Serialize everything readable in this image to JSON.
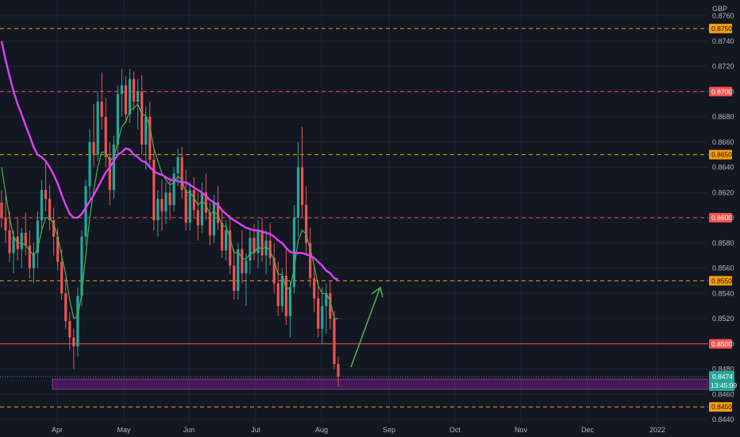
{
  "chart_data": {
    "type": "candlestick",
    "currency": "GBP",
    "grid": true,
    "y_axis": {
      "min": 0.8436,
      "max": 0.8772,
      "ticks": [
        "0.8760",
        "0.8740",
        "0.8720",
        "0.8700",
        "0.8680",
        "0.8660",
        "0.8640",
        "0.8620",
        "0.8600",
        "0.8580",
        "0.8560",
        "0.8540",
        "0.8520",
        "0.8500",
        "0.8480",
        "0.8460",
        "0.8440"
      ]
    },
    "x_axis": {
      "labels": [
        "Apr",
        "May",
        "Jun",
        "Jul",
        "Aug",
        "Sep",
        "Oct",
        "Nov",
        "Dec",
        "2022"
      ]
    },
    "levels": [
      {
        "value": 0.875,
        "label": "0.8750",
        "color": "#f59d0b",
        "style": "dashed"
      },
      {
        "value": 0.87,
        "label": "0.8700",
        "color": "#f05350",
        "style": "dashed"
      },
      {
        "value": 0.865,
        "label": "0.8650",
        "color": "#f59d0b",
        "style": "dashed"
      },
      {
        "value": 0.86,
        "label": "0.8600",
        "color": "#f05350",
        "style": "dashed"
      },
      {
        "value": 0.855,
        "label": "0.8550",
        "color": "#f59d0b",
        "style": "dashed"
      },
      {
        "value": 0.85,
        "label": "0.8500",
        "color": "#f05350",
        "style": "solid"
      },
      {
        "value": 0.845,
        "label": "0.8450",
        "color": "#f59d0b",
        "style": "dashed"
      }
    ],
    "support_zone": {
      "low": 0.8464,
      "high": 0.8472,
      "color": "#9c27b0"
    },
    "current_price": {
      "value": "0.8474",
      "countdown": "13:45:09",
      "color": "#26a69a"
    },
    "colors": {
      "up": "#26a69a",
      "down": "#ef5350",
      "ema_fast": "#4caf50",
      "ema_slow": "#e040fb",
      "arrow": "#4caf50"
    },
    "candles_ohlc": [
      [
        0.8612,
        0.8622,
        0.8592,
        0.86
      ],
      [
        0.86,
        0.8618,
        0.858,
        0.859
      ],
      [
        0.859,
        0.8605,
        0.8565,
        0.8572
      ],
      [
        0.8572,
        0.859,
        0.8556,
        0.8585
      ],
      [
        0.8585,
        0.86,
        0.8566,
        0.8575
      ],
      [
        0.8575,
        0.8592,
        0.856,
        0.8588
      ],
      [
        0.8588,
        0.8604,
        0.857,
        0.8578
      ],
      [
        0.8578,
        0.859,
        0.8552,
        0.856
      ],
      [
        0.856,
        0.858,
        0.8548,
        0.8572
      ],
      [
        0.8572,
        0.8605,
        0.856,
        0.8598
      ],
      [
        0.8598,
        0.863,
        0.8588,
        0.8622
      ],
      [
        0.8622,
        0.8645,
        0.8605,
        0.8615
      ],
      [
        0.8615,
        0.8626,
        0.859,
        0.8598
      ],
      [
        0.8598,
        0.8608,
        0.857,
        0.8585
      ],
      [
        0.8585,
        0.8592,
        0.8558,
        0.8565
      ],
      [
        0.8565,
        0.8575,
        0.8535,
        0.854
      ],
      [
        0.854,
        0.8552,
        0.8512,
        0.8518
      ],
      [
        0.8518,
        0.8525,
        0.8495,
        0.8505
      ],
      [
        0.8505,
        0.8512,
        0.848,
        0.8498
      ],
      [
        0.8498,
        0.8545,
        0.849,
        0.8538
      ],
      [
        0.8538,
        0.859,
        0.853,
        0.8585
      ],
      [
        0.8585,
        0.863,
        0.8578,
        0.8625
      ],
      [
        0.8625,
        0.867,
        0.8615,
        0.866
      ],
      [
        0.866,
        0.869,
        0.864,
        0.865
      ],
      [
        0.865,
        0.87,
        0.8645,
        0.8692
      ],
      [
        0.8692,
        0.8715,
        0.867,
        0.868
      ],
      [
        0.868,
        0.8695,
        0.864,
        0.8648
      ],
      [
        0.8648,
        0.866,
        0.861,
        0.8622
      ],
      [
        0.8622,
        0.8665,
        0.8615,
        0.8658
      ],
      [
        0.8658,
        0.8705,
        0.865,
        0.8698
      ],
      [
        0.8698,
        0.8718,
        0.868,
        0.8705
      ],
      [
        0.8705,
        0.8712,
        0.8675,
        0.8682
      ],
      [
        0.8682,
        0.8718,
        0.8675,
        0.871
      ],
      [
        0.871,
        0.8716,
        0.8685,
        0.8692
      ],
      [
        0.8692,
        0.871,
        0.867,
        0.87
      ],
      [
        0.87,
        0.8713,
        0.865,
        0.8658
      ],
      [
        0.8658,
        0.8688,
        0.8638,
        0.868
      ],
      [
        0.868,
        0.8692,
        0.864,
        0.8646
      ],
      [
        0.8646,
        0.8654,
        0.859,
        0.8598
      ],
      [
        0.8598,
        0.8622,
        0.8585,
        0.8615
      ],
      [
        0.8615,
        0.863,
        0.859,
        0.8605
      ],
      [
        0.8605,
        0.8628,
        0.8595,
        0.862
      ],
      [
        0.862,
        0.8632,
        0.8598,
        0.861
      ],
      [
        0.861,
        0.864,
        0.8605,
        0.8635
      ],
      [
        0.8635,
        0.8655,
        0.8625,
        0.8648
      ],
      [
        0.8648,
        0.8656,
        0.8615,
        0.8622
      ],
      [
        0.8622,
        0.8638,
        0.859,
        0.8596
      ],
      [
        0.8596,
        0.8628,
        0.859,
        0.8622
      ],
      [
        0.8622,
        0.8632,
        0.86,
        0.8606
      ],
      [
        0.8606,
        0.862,
        0.8582,
        0.8594
      ],
      [
        0.8594,
        0.8628,
        0.8588,
        0.862
      ],
      [
        0.862,
        0.8635,
        0.8598,
        0.8604
      ],
      [
        0.8604,
        0.8612,
        0.8578,
        0.8586
      ],
      [
        0.8586,
        0.8618,
        0.858,
        0.8612
      ],
      [
        0.8612,
        0.8625,
        0.859,
        0.8596
      ],
      [
        0.8596,
        0.8606,
        0.8568,
        0.8574
      ],
      [
        0.8574,
        0.8598,
        0.8566,
        0.859
      ],
      [
        0.859,
        0.8602,
        0.8555,
        0.8562
      ],
      [
        0.8562,
        0.8575,
        0.8535,
        0.8542
      ],
      [
        0.8542,
        0.858,
        0.8535,
        0.8575
      ],
      [
        0.8575,
        0.859,
        0.8548,
        0.8556
      ],
      [
        0.8556,
        0.8572,
        0.853,
        0.8566
      ],
      [
        0.8566,
        0.859,
        0.8555,
        0.8584
      ],
      [
        0.8584,
        0.8595,
        0.8566,
        0.8572
      ],
      [
        0.8572,
        0.8598,
        0.856,
        0.859
      ],
      [
        0.859,
        0.86,
        0.8565,
        0.857
      ],
      [
        0.857,
        0.859,
        0.8555,
        0.8582
      ],
      [
        0.8582,
        0.8596,
        0.8562,
        0.8568
      ],
      [
        0.8568,
        0.858,
        0.854,
        0.8548
      ],
      [
        0.8548,
        0.8565,
        0.8522,
        0.853
      ],
      [
        0.853,
        0.856,
        0.8525,
        0.8554
      ],
      [
        0.8554,
        0.8575,
        0.8515,
        0.8522
      ],
      [
        0.8522,
        0.855,
        0.8505,
        0.8545
      ],
      [
        0.8545,
        0.861,
        0.854,
        0.86
      ],
      [
        0.86,
        0.866,
        0.8585,
        0.864
      ],
      [
        0.864,
        0.8672,
        0.86,
        0.861
      ],
      [
        0.861,
        0.8625,
        0.857,
        0.858
      ],
      [
        0.858,
        0.8592,
        0.8545,
        0.8552
      ],
      [
        0.8552,
        0.8562,
        0.8525,
        0.8536
      ],
      [
        0.8536,
        0.855,
        0.8505,
        0.8512
      ],
      [
        0.8512,
        0.8545,
        0.85,
        0.853
      ],
      [
        0.853,
        0.8548,
        0.8508,
        0.854
      ],
      [
        0.854,
        0.855,
        0.8512,
        0.852
      ],
      [
        0.852,
        0.8526,
        0.848,
        0.8484
      ],
      [
        0.8484,
        0.849,
        0.8466,
        0.8474
      ]
    ],
    "ema_fast_values": [
      0.864,
      0.862,
      0.86,
      0.8585,
      0.858,
      0.858,
      0.8578,
      0.8574,
      0.857,
      0.8575,
      0.859,
      0.86,
      0.86,
      0.8595,
      0.8585,
      0.857,
      0.8555,
      0.8535,
      0.852,
      0.8522,
      0.854,
      0.857,
      0.86,
      0.8622,
      0.864,
      0.8652,
      0.8652,
      0.8645,
      0.8648,
      0.866,
      0.8672,
      0.8676,
      0.8685,
      0.8687,
      0.869,
      0.8682,
      0.8681,
      0.8672,
      0.8655,
      0.8645,
      0.8635,
      0.863,
      0.8626,
      0.8628,
      0.8633,
      0.863,
      0.862,
      0.862,
      0.8616,
      0.861,
      0.8613,
      0.861,
      0.8603,
      0.8605,
      0.8602,
      0.8594,
      0.8593,
      0.8584,
      0.8572,
      0.8573,
      0.8568,
      0.8567,
      0.8572,
      0.8572,
      0.8577,
      0.8575,
      0.8577,
      0.8574,
      0.8566,
      0.8555,
      0.8555,
      0.8544,
      0.8544,
      0.856,
      0.8582,
      0.859,
      0.8587,
      0.8575,
      0.8562,
      0.8546,
      0.854,
      0.854,
      0.8534,
      0.852,
      0.852
    ],
    "ema_slow_values": [
      0.874,
      0.8725,
      0.8712,
      0.87,
      0.869,
      0.8682,
      0.8673,
      0.8665,
      0.8656,
      0.865,
      0.8648,
      0.8645,
      0.864,
      0.8634,
      0.8627,
      0.8618,
      0.861,
      0.8603,
      0.86,
      0.86,
      0.8603,
      0.8608,
      0.8613,
      0.8618,
      0.8624,
      0.863,
      0.8636,
      0.864,
      0.8645,
      0.865,
      0.8652,
      0.8655,
      0.8654,
      0.865,
      0.8648,
      0.8645,
      0.8644,
      0.864,
      0.8637,
      0.8635,
      0.8634,
      0.8632,
      0.863,
      0.863,
      0.8629,
      0.8628,
      0.8628,
      0.8626,
      0.8624,
      0.8622,
      0.862,
      0.8617,
      0.8614,
      0.8612,
      0.861,
      0.8606,
      0.8603,
      0.86,
      0.8598,
      0.8596,
      0.8594,
      0.8592,
      0.8591,
      0.859,
      0.859,
      0.8589,
      0.8588,
      0.8587,
      0.8585,
      0.8582,
      0.858,
      0.8576,
      0.8573,
      0.8572,
      0.8572,
      0.8572,
      0.8571,
      0.857,
      0.8568,
      0.8565,
      0.8562,
      0.8558,
      0.8556,
      0.8552,
      0.8551
    ]
  }
}
